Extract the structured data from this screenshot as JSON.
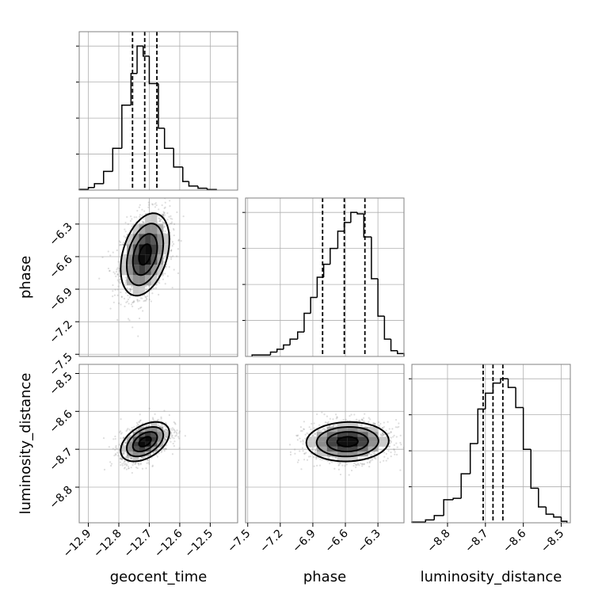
{
  "chart_data": {
    "type": "corner",
    "parameters": [
      "geocent_time",
      "phase",
      "luminosity_distance"
    ],
    "axis_labels": {
      "geocent_time": "geocent_time",
      "phase": "phase",
      "luminosity_distance": "luminosity_distance"
    },
    "ranges": {
      "geocent_time": [
        -12.93,
        -12.41
      ],
      "phase": [
        -7.52,
        -6.06
      ],
      "luminosity_distance": [
        -8.894,
        -8.476
      ]
    },
    "ticks": {
      "geocent_time": [
        -12.9,
        -12.8,
        -12.7,
        -12.6,
        -12.5
      ],
      "phase": [
        -7.5,
        -7.2,
        -6.9,
        -6.6,
        -6.3
      ],
      "luminosity_distance": [
        -8.8,
        -8.7,
        -8.6,
        -8.5
      ]
    },
    "tick_labels": {
      "geocent_time": [
        "−12.9",
        "−12.8",
        "−12.7",
        "−12.6",
        "−12.5"
      ],
      "phase": [
        "−7.5",
        "−7.2",
        "−6.9",
        "−6.6",
        "−6.3"
      ],
      "luminosity_distance": [
        "−8.8",
        "−8.7",
        "−8.6",
        "−8.5"
      ]
    },
    "grid": true,
    "histograms": {
      "geocent_time": {
        "edges": [
          -12.93,
          -12.9,
          -12.88,
          -12.85,
          -12.82,
          -12.79,
          -12.76,
          -12.74,
          -12.72,
          -12.7,
          -12.67,
          -12.65,
          -12.62,
          -12.59,
          -12.57,
          -12.54,
          -12.51,
          -12.48
        ],
        "counts": [
          0.005,
          0.018,
          0.045,
          0.13,
          0.29,
          0.59,
          0.81,
          1.0,
          0.93,
          0.74,
          0.43,
          0.29,
          0.16,
          0.06,
          0.028,
          0.013,
          0.004
        ]
      },
      "phase": {
        "edges": [
          -7.46,
          -7.29,
          -7.23,
          -7.17,
          -7.11,
          -7.04,
          -6.98,
          -6.92,
          -6.86,
          -6.8,
          -6.74,
          -6.67,
          -6.61,
          -6.55,
          -6.49,
          -6.43,
          -6.36,
          -6.3,
          -6.24,
          -6.18,
          -6.12,
          -6.06
        ],
        "counts": [
          0.01,
          0.03,
          0.05,
          0.08,
          0.12,
          0.17,
          0.3,
          0.41,
          0.55,
          0.64,
          0.75,
          0.87,
          0.93,
          1.0,
          0.99,
          0.83,
          0.54,
          0.28,
          0.12,
          0.04,
          0.02
        ]
      },
      "luminosity_distance": {
        "edges": [
          -8.894,
          -8.858,
          -8.835,
          -8.81,
          -8.785,
          -8.764,
          -8.74,
          -8.72,
          -8.7,
          -8.68,
          -8.66,
          -8.64,
          -8.62,
          -8.6,
          -8.58,
          -8.56,
          -8.54,
          -8.52,
          -8.5,
          -8.485
        ],
        "counts": [
          0.005,
          0.02,
          0.05,
          0.16,
          0.17,
          0.34,
          0.55,
          0.79,
          0.9,
          0.97,
          1.0,
          0.94,
          0.8,
          0.51,
          0.24,
          0.11,
          0.06,
          0.04,
          0.01
        ]
      }
    },
    "quantile_markers": {
      "geocent_time": [
        -12.755,
        -12.715,
        -12.675
      ],
      "phase": [
        -6.81,
        -6.61,
        -6.42
      ],
      "luminosity_distance": [
        -8.706,
        -8.68,
        -8.654
      ]
    },
    "posterior_summary": {
      "geocent_time": {
        "mean": -12.714,
        "sd": 0.04
      },
      "phase": {
        "mean": -6.58,
        "sd": 0.19
      },
      "luminosity_distance": {
        "mean": -8.68,
        "sd": 0.026
      },
      "correlations": {
        "geocent_time|phase": 0.35,
        "geocent_time|luminosity_distance": 0.45,
        "phase|luminosity_distance": 0.05
      }
    },
    "contour_levels_sigma": [
      0.5,
      1,
      1.5,
      2
    ],
    "colors": {
      "line": "#000000",
      "samples": "#8a8a8a",
      "grid": "#b0b0b0",
      "frame": "#808080"
    }
  }
}
